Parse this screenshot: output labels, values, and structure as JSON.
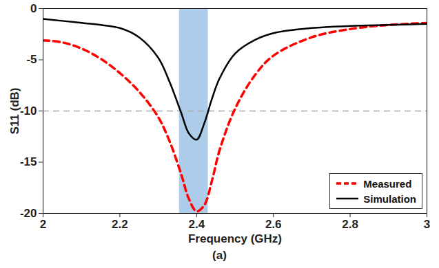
{
  "chart_data": {
    "type": "line",
    "x_label": "Frequency (GHz)",
    "y_label": "S11 (dB)",
    "caption": "(a)",
    "xlim": [
      2,
      3
    ],
    "xticks": [
      2,
      2.2,
      2.4,
      2.6,
      2.8,
      3
    ],
    "ylim": [
      -20,
      0
    ],
    "yticks": [
      -20,
      -15,
      -10,
      -5,
      0
    ],
    "grid": false,
    "legend": "lower right",
    "x": [
      2.0,
      2.05,
      2.1,
      2.15,
      2.2,
      2.25,
      2.3,
      2.33,
      2.36,
      2.38,
      2.4,
      2.42,
      2.44,
      2.46,
      2.5,
      2.55,
      2.6,
      2.7,
      2.8,
      2.9,
      3.0
    ],
    "series": [
      {
        "name": "Measured",
        "color": "#ff0000",
        "line_style": "dashed",
        "values": [
          -3.1,
          -3.3,
          -3.9,
          -4.9,
          -6.3,
          -8.1,
          -10.6,
          -13.0,
          -16.2,
          -18.6,
          -19.8,
          -19.2,
          -16.8,
          -13.8,
          -9.8,
          -6.6,
          -4.6,
          -2.8,
          -2.0,
          -1.6,
          -1.4
        ]
      },
      {
        "name": "Simulation",
        "color": "#000000",
        "line_style": "solid",
        "values": [
          -1.0,
          -1.2,
          -1.4,
          -1.6,
          -1.9,
          -2.8,
          -4.8,
          -7.2,
          -10.2,
          -12.2,
          -12.8,
          -11.2,
          -8.8,
          -6.8,
          -4.4,
          -3.1,
          -2.4,
          -1.9,
          -1.7,
          -1.6,
          -1.5
        ]
      }
    ],
    "shaded_band": {
      "x": [
        2.355,
        2.43
      ],
      "color": "#9dc3e6"
    },
    "threshold": {
      "y": -10,
      "color": "#aaaaaa",
      "line_style": "dashed"
    }
  }
}
